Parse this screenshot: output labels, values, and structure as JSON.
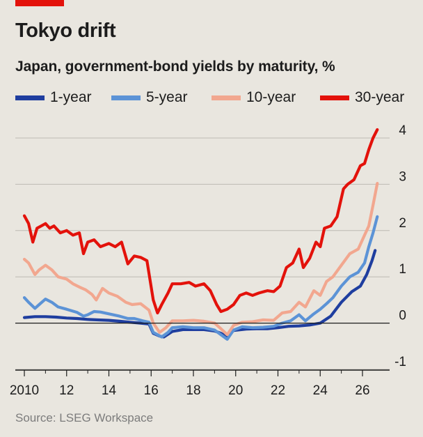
{
  "header": {
    "title": "Tokyo drift",
    "subtitle": "Japan, government-bond yields by maturity, %"
  },
  "source": "Source: LSEG Workspace",
  "colors": {
    "background": "#e9e6df",
    "accent": "#e3120b",
    "series_1y": "#1f3e9f",
    "series_5y": "#5c93d6",
    "series_10y": "#f2a78f",
    "series_30y": "#e3120b"
  },
  "chart_data": {
    "type": "line",
    "title": "Tokyo drift",
    "subtitle": "Japan, government-bond yields by maturity, %",
    "xlabel": "",
    "ylabel": "",
    "xlim": [
      2009.8,
      2026.9
    ],
    "ylim": [
      -1,
      4.4
    ],
    "y_ticks": [
      4,
      3,
      2,
      1,
      0,
      -1
    ],
    "y_tick_labels": [
      "4",
      "3",
      "2",
      "1",
      "0",
      "-1"
    ],
    "x_ticks": [
      2010,
      2012,
      2014,
      2016,
      2018,
      2020,
      2022,
      2024,
      2026
    ],
    "x_tick_labels": [
      "2010",
      "12",
      "14",
      "16",
      "18",
      "20",
      "22",
      "24",
      "26"
    ],
    "grid": true,
    "legend_position": "top",
    "series": [
      {
        "name": "1-year",
        "color": "#1f3e9f",
        "points": [
          [
            2010.0,
            0.12
          ],
          [
            2010.5,
            0.14
          ],
          [
            2011.0,
            0.14
          ],
          [
            2011.5,
            0.13
          ],
          [
            2012.0,
            0.11
          ],
          [
            2012.5,
            0.1
          ],
          [
            2013.0,
            0.08
          ],
          [
            2013.5,
            0.07
          ],
          [
            2014.0,
            0.06
          ],
          [
            2014.5,
            0.04
          ],
          [
            2015.0,
            0.02
          ],
          [
            2015.5,
            0.0
          ],
          [
            2015.9,
            -0.02
          ],
          [
            2016.1,
            -0.22
          ],
          [
            2016.4,
            -0.28
          ],
          [
            2016.6,
            -0.3
          ],
          [
            2017.0,
            -0.18
          ],
          [
            2017.5,
            -0.14
          ],
          [
            2018.0,
            -0.14
          ],
          [
            2018.5,
            -0.14
          ],
          [
            2019.0,
            -0.17
          ],
          [
            2019.3,
            -0.22
          ],
          [
            2019.6,
            -0.3
          ],
          [
            2019.9,
            -0.16
          ],
          [
            2020.5,
            -0.13
          ],
          [
            2021.0,
            -0.12
          ],
          [
            2021.5,
            -0.12
          ],
          [
            2022.0,
            -0.1
          ],
          [
            2022.5,
            -0.07
          ],
          [
            2023.0,
            -0.06
          ],
          [
            2023.5,
            -0.04
          ],
          [
            2024.0,
            0.0
          ],
          [
            2024.5,
            0.15
          ],
          [
            2025.0,
            0.45
          ],
          [
            2025.5,
            0.68
          ],
          [
            2025.9,
            0.8
          ],
          [
            2026.2,
            1.05
          ],
          [
            2026.45,
            1.35
          ],
          [
            2026.6,
            1.57
          ]
        ]
      },
      {
        "name": "5-year",
        "color": "#5c93d6",
        "points": [
          [
            2010.0,
            0.55
          ],
          [
            2010.2,
            0.45
          ],
          [
            2010.5,
            0.32
          ],
          [
            2010.7,
            0.4
          ],
          [
            2011.0,
            0.52
          ],
          [
            2011.3,
            0.45
          ],
          [
            2011.6,
            0.35
          ],
          [
            2012.0,
            0.3
          ],
          [
            2012.5,
            0.23
          ],
          [
            2012.8,
            0.15
          ],
          [
            2013.0,
            0.18
          ],
          [
            2013.3,
            0.25
          ],
          [
            2013.6,
            0.24
          ],
          [
            2014.0,
            0.2
          ],
          [
            2014.5,
            0.15
          ],
          [
            2014.9,
            0.1
          ],
          [
            2015.2,
            0.1
          ],
          [
            2015.6,
            0.05
          ],
          [
            2015.9,
            0.02
          ],
          [
            2016.1,
            -0.2
          ],
          [
            2016.5,
            -0.3
          ],
          [
            2016.8,
            -0.2
          ],
          [
            2017.0,
            -0.1
          ],
          [
            2017.5,
            -0.08
          ],
          [
            2018.0,
            -0.1
          ],
          [
            2018.5,
            -0.1
          ],
          [
            2019.0,
            -0.15
          ],
          [
            2019.3,
            -0.25
          ],
          [
            2019.6,
            -0.35
          ],
          [
            2019.9,
            -0.15
          ],
          [
            2020.3,
            -0.08
          ],
          [
            2020.8,
            -0.1
          ],
          [
            2021.3,
            -0.09
          ],
          [
            2021.8,
            -0.07
          ],
          [
            2022.2,
            0.0
          ],
          [
            2022.6,
            0.05
          ],
          [
            2023.0,
            0.18
          ],
          [
            2023.3,
            0.05
          ],
          [
            2023.7,
            0.2
          ],
          [
            2024.0,
            0.3
          ],
          [
            2024.3,
            0.42
          ],
          [
            2024.6,
            0.55
          ],
          [
            2025.0,
            0.8
          ],
          [
            2025.4,
            1.0
          ],
          [
            2025.8,
            1.1
          ],
          [
            2026.1,
            1.3
          ],
          [
            2026.3,
            1.65
          ],
          [
            2026.5,
            1.95
          ],
          [
            2026.7,
            2.3
          ]
        ]
      },
      {
        "name": "10-year",
        "color": "#f2a78f",
        "points": [
          [
            2010.0,
            1.38
          ],
          [
            2010.2,
            1.3
          ],
          [
            2010.5,
            1.05
          ],
          [
            2010.7,
            1.15
          ],
          [
            2011.0,
            1.25
          ],
          [
            2011.3,
            1.15
          ],
          [
            2011.6,
            1.0
          ],
          [
            2012.0,
            0.95
          ],
          [
            2012.3,
            0.85
          ],
          [
            2012.6,
            0.78
          ],
          [
            2012.9,
            0.72
          ],
          [
            2013.2,
            0.62
          ],
          [
            2013.4,
            0.5
          ],
          [
            2013.7,
            0.75
          ],
          [
            2014.0,
            0.65
          ],
          [
            2014.4,
            0.58
          ],
          [
            2014.8,
            0.45
          ],
          [
            2015.1,
            0.4
          ],
          [
            2015.5,
            0.42
          ],
          [
            2015.9,
            0.28
          ],
          [
            2016.1,
            0.0
          ],
          [
            2016.4,
            -0.2
          ],
          [
            2016.7,
            -0.1
          ],
          [
            2017.0,
            0.05
          ],
          [
            2017.5,
            0.05
          ],
          [
            2018.0,
            0.06
          ],
          [
            2018.5,
            0.04
          ],
          [
            2019.0,
            0.0
          ],
          [
            2019.3,
            -0.12
          ],
          [
            2019.6,
            -0.25
          ],
          [
            2019.9,
            -0.05
          ],
          [
            2020.3,
            0.02
          ],
          [
            2020.8,
            0.03
          ],
          [
            2021.3,
            0.07
          ],
          [
            2021.8,
            0.06
          ],
          [
            2022.2,
            0.22
          ],
          [
            2022.6,
            0.25
          ],
          [
            2023.0,
            0.45
          ],
          [
            2023.3,
            0.35
          ],
          [
            2023.7,
            0.7
          ],
          [
            2024.0,
            0.6
          ],
          [
            2024.3,
            0.9
          ],
          [
            2024.6,
            1.0
          ],
          [
            2025.0,
            1.25
          ],
          [
            2025.4,
            1.5
          ],
          [
            2025.8,
            1.6
          ],
          [
            2026.1,
            1.9
          ],
          [
            2026.3,
            2.1
          ],
          [
            2026.5,
            2.55
          ],
          [
            2026.7,
            3.02
          ]
        ]
      },
      {
        "name": "30-year",
        "color": "#e3120b",
        "points": [
          [
            2010.0,
            2.32
          ],
          [
            2010.2,
            2.15
          ],
          [
            2010.4,
            1.75
          ],
          [
            2010.6,
            2.05
          ],
          [
            2010.8,
            2.1
          ],
          [
            2011.0,
            2.15
          ],
          [
            2011.2,
            2.05
          ],
          [
            2011.4,
            2.1
          ],
          [
            2011.7,
            1.95
          ],
          [
            2012.0,
            2.0
          ],
          [
            2012.3,
            1.9
          ],
          [
            2012.6,
            1.95
          ],
          [
            2012.8,
            1.5
          ],
          [
            2013.0,
            1.75
          ],
          [
            2013.3,
            1.8
          ],
          [
            2013.6,
            1.65
          ],
          [
            2014.0,
            1.72
          ],
          [
            2014.3,
            1.65
          ],
          [
            2014.6,
            1.75
          ],
          [
            2014.9,
            1.28
          ],
          [
            2015.2,
            1.45
          ],
          [
            2015.5,
            1.42
          ],
          [
            2015.8,
            1.35
          ],
          [
            2016.1,
            0.5
          ],
          [
            2016.3,
            0.22
          ],
          [
            2016.5,
            0.4
          ],
          [
            2016.8,
            0.65
          ],
          [
            2017.0,
            0.85
          ],
          [
            2017.4,
            0.85
          ],
          [
            2017.8,
            0.88
          ],
          [
            2018.1,
            0.8
          ],
          [
            2018.5,
            0.85
          ],
          [
            2018.8,
            0.7
          ],
          [
            2019.1,
            0.4
          ],
          [
            2019.3,
            0.25
          ],
          [
            2019.6,
            0.3
          ],
          [
            2019.9,
            0.4
          ],
          [
            2020.2,
            0.6
          ],
          [
            2020.5,
            0.65
          ],
          [
            2020.8,
            0.6
          ],
          [
            2021.1,
            0.65
          ],
          [
            2021.5,
            0.7
          ],
          [
            2021.8,
            0.68
          ],
          [
            2022.1,
            0.8
          ],
          [
            2022.4,
            1.2
          ],
          [
            2022.7,
            1.3
          ],
          [
            2023.0,
            1.6
          ],
          [
            2023.2,
            1.2
          ],
          [
            2023.5,
            1.4
          ],
          [
            2023.8,
            1.75
          ],
          [
            2024.0,
            1.65
          ],
          [
            2024.2,
            2.05
          ],
          [
            2024.5,
            2.1
          ],
          [
            2024.8,
            2.3
          ],
          [
            2025.1,
            2.9
          ],
          [
            2025.3,
            3.0
          ],
          [
            2025.6,
            3.1
          ],
          [
            2025.9,
            3.4
          ],
          [
            2026.1,
            3.45
          ],
          [
            2026.3,
            3.75
          ],
          [
            2026.5,
            4.0
          ],
          [
            2026.7,
            4.18
          ]
        ]
      }
    ]
  }
}
